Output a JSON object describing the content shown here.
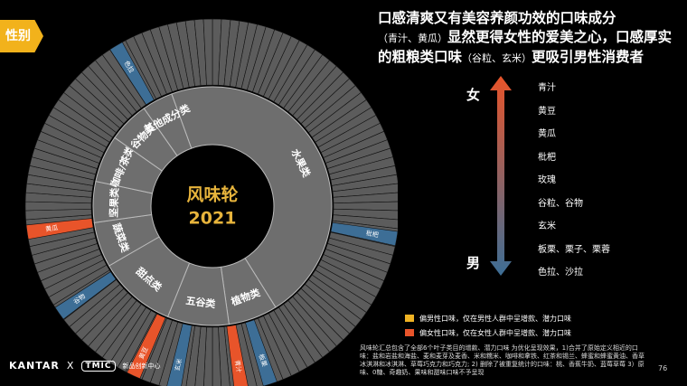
{
  "tag": "性别",
  "headline": [
    {
      "text": "口感清爽又有美容养颜功效的口味成分",
      "small": false
    },
    {
      "text": "（青汁、黄瓜）",
      "small": true
    },
    {
      "text": "显然更得女性的爱美之心，口感厚实的粗粮类口味",
      "small": false
    },
    {
      "text": "（谷粒、玄米）",
      "small": true
    },
    {
      "text": "更吸引男性消费者",
      "small": false
    }
  ],
  "wheel": {
    "center_title": "风味轮",
    "center_year": "2021",
    "categories": [
      "水果类",
      "植物类",
      "五谷类",
      "甜点类",
      "蔬菜类",
      "坚果类",
      "咖啡/茶类",
      "谷物类",
      "其他成分类"
    ],
    "highlights": [
      {
        "label": "枇杷",
        "color": "#3d6e96"
      },
      {
        "label": "板栗",
        "color": "#3d6e96"
      },
      {
        "label": "青汁",
        "color": "#e8542a"
      },
      {
        "label": "玄米",
        "color": "#3d6e96"
      },
      {
        "label": "黄豆",
        "color": "#e8542a"
      },
      {
        "label": "谷物",
        "color": "#3d6e96"
      },
      {
        "label": "黄瓜",
        "color": "#e8542a"
      },
      {
        "label": "色拉",
        "color": "#3d6e96"
      }
    ]
  },
  "scale": {
    "top": "女",
    "bottom": "男",
    "items": [
      "青汁",
      "黄豆",
      "黄瓜",
      "枇杷",
      "玫瑰",
      "谷粒、谷物",
      "玄米",
      "板栗、栗子、栗蓉",
      "色拉、沙拉"
    ]
  },
  "legend": [
    {
      "label": "偏男性口味，仅在男性人群中呈增款、潜力口味",
      "color": "#f0b323"
    },
    {
      "label": "偏女性口味，仅在女性人群中呈增款、潜力口味",
      "color": "#e8542a"
    }
  ],
  "footnote": "风味轮汇总包含了全部6个叶子类目的增款、潜力口味 为优化呈现效果，1)合并了原始定义相近的口味：盐和岩盐和海盐、麦和麦芽及麦香、米和糯米、咖啡和拿铁、红茶和锡兰、蜂蜜和蜂蜜黄油、香草冰淇淋和冰淇淋、草莓巧克力和巧克力; 2) 删除了被重复统计的口味：桃、香蕉牛奶、蓝莓草莓 3）原味、0糖、奇趣奶、果味和甜味口味不予呈现",
  "page": "76",
  "brand": {
    "kantar": "KANTAR",
    "x": "X",
    "tmic": "TMIC",
    "tmic_sub": "新品创新中心"
  }
}
